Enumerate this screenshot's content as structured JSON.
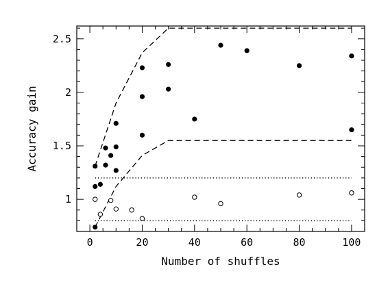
{
  "chart_data": {
    "type": "scatter",
    "title": "",
    "xlabel": "Number of shuffles",
    "ylabel": "Accuracy gain",
    "xlim": [
      -5,
      105
    ],
    "ylim": [
      0.7,
      2.62
    ],
    "x_ticks": [
      0,
      20,
      40,
      60,
      80,
      100
    ],
    "x_tick_labels": [
      "0",
      "20",
      "40",
      "60",
      "80",
      "100"
    ],
    "y_ticks": [
      1,
      1.5,
      2,
      2.5
    ],
    "y_tick_labels": [
      "1",
      "1.5",
      "2",
      "2.5"
    ],
    "grid": false,
    "series": [
      {
        "marker": "filled-circle",
        "color": "#000000",
        "points": [
          [
            2,
            1.31
          ],
          [
            2,
            1.12
          ],
          [
            2,
            0.74
          ],
          [
            4,
            1.14
          ],
          [
            6,
            1.48
          ],
          [
            6,
            1.32
          ],
          [
            8,
            1.41
          ],
          [
            10,
            1.71
          ],
          [
            10,
            1.49
          ],
          [
            10,
            1.27
          ],
          [
            20,
            2.23
          ],
          [
            20,
            1.96
          ],
          [
            20,
            1.6
          ],
          [
            30,
            2.26
          ],
          [
            30,
            2.03
          ],
          [
            40,
            1.75
          ],
          [
            50,
            2.44
          ],
          [
            60,
            2.39
          ],
          [
            80,
            2.25
          ],
          [
            100,
            2.34
          ],
          [
            100,
            1.65
          ]
        ]
      },
      {
        "marker": "open-circle",
        "color": "#000000",
        "points": [
          [
            2,
            1.0
          ],
          [
            4,
            0.86
          ],
          [
            8,
            0.99
          ],
          [
            10,
            0.91
          ],
          [
            16,
            0.9
          ],
          [
            20,
            0.82
          ],
          [
            40,
            1.02
          ],
          [
            50,
            0.96
          ],
          [
            80,
            1.04
          ],
          [
            100,
            1.06
          ]
        ]
      }
    ],
    "lines": [
      {
        "style": "dashed",
        "points": [
          [
            2,
            1.31
          ],
          [
            10,
            1.9
          ],
          [
            20,
            2.37
          ],
          [
            30,
            2.6
          ],
          [
            100,
            2.6
          ]
        ]
      },
      {
        "style": "dashed",
        "points": [
          [
            2,
            0.74
          ],
          [
            10,
            1.12
          ],
          [
            20,
            1.41
          ],
          [
            30,
            1.55
          ],
          [
            100,
            1.55
          ]
        ]
      },
      {
        "style": "dotted",
        "points": [
          [
            2,
            1.2
          ],
          [
            100,
            1.2
          ]
        ]
      },
      {
        "style": "dotted",
        "points": [
          [
            2,
            0.8
          ],
          [
            100,
            0.8
          ]
        ]
      }
    ]
  }
}
